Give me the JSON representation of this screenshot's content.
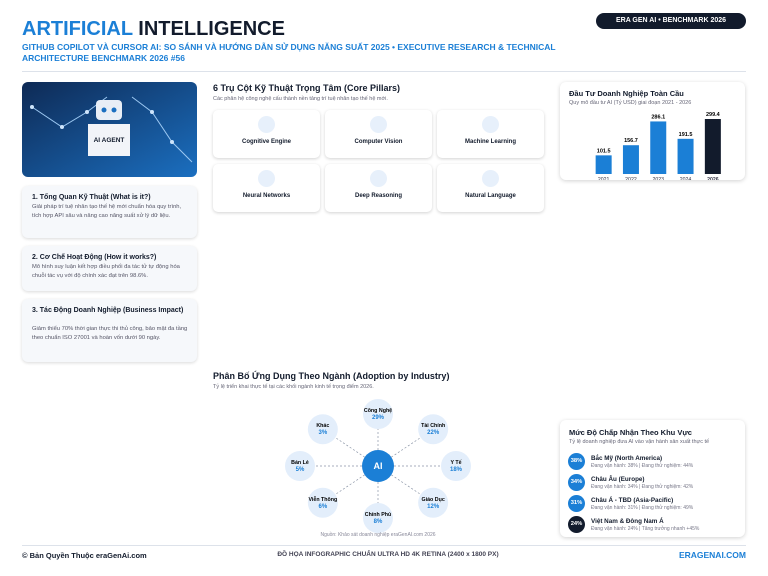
{
  "header": {
    "title_a": "ARTIFICIAL",
    "title_b": "INTELLIGENCE",
    "badge": "ERA GEN AI • BENCHMARK 2026",
    "subtitle": "GITHUB COPILOT VÀ CURSOR AI: SO SÁNH VÀ HƯỚNG DẪN SỬ DỤNG NĂNG SUẤT 2025 • EXECUTIVE RESEARCH & TECHNICAL ARCHITECTURE BENCHMARK 2026 #56"
  },
  "left": {
    "image_label": "AI AGENT",
    "cards": [
      {
        "title": "1. Tổng Quan Kỹ Thuật (What is it?)",
        "text": "Giải pháp trí tuệ nhân tạo thế hệ mới chuẩn hóa quy trình, tích hợp API sâu và nâng cao năng suất xử lý dữ liệu."
      },
      {
        "title": "2. Cơ Chế Hoạt Động (How it works?)",
        "text": "Mô hình suy luận kết hợp điều phối đa tác tử tự động hóa chuỗi tác vụ với độ chính xác đạt trên 98.6%."
      },
      {
        "title": "3. Tác Động Doanh Nghiệp (Business Impact)",
        "text": "Giảm thiểu 70% thời gian thực thi thủ công, bảo mật đa tầng theo chuẩn ISO 27001 và hoàn vốn dưới 90 ngày."
      }
    ]
  },
  "pillars": {
    "title": "6 Trụ Cột Kỹ Thuật Trọng Tâm (Core Pillars)",
    "subtitle": "Các phân hệ công nghệ cấu thành nền tảng trí tuệ nhân tạo thế hệ mới.",
    "items": [
      "Cognitive Engine",
      "Computer Vision",
      "Machine Learning",
      "Neural Networks",
      "Deep Reasoning",
      "Natural Language"
    ]
  },
  "chart_data": [
    {
      "type": "bar",
      "title": "Đầu Tư Doanh Nghiệp Toàn Cầu",
      "subtitle": "Quy mô đầu tư AI (Tỷ USD) giai đoạn 2021 - 2026",
      "categories": [
        "2021",
        "2022",
        "2023",
        "2024",
        "2026"
      ],
      "values": [
        101.5,
        156.7,
        286.1,
        191.5,
        299.4
      ],
      "colors": [
        "#1b7fd6",
        "#1b7fd6",
        "#1b7fd6",
        "#1b7fd6",
        "#121b2c"
      ]
    },
    {
      "type": "radial",
      "title": "Phân Bố Ứng Dụng Theo Ngành (Adoption by Industry)",
      "subtitle": "Tỷ lệ triển khai thực tế tại các khối ngành kinh tế trọng điểm 2026.",
      "center": "AI",
      "categories": [
        "Công Nghệ",
        "Tài Chính",
        "Y Tế",
        "Giáo Dục",
        "Chính Phủ",
        "Viễn Thông",
        "Bán Lẻ",
        "Khác"
      ],
      "values": [
        29,
        22,
        18,
        12,
        8,
        6,
        5,
        3
      ],
      "value_labels": [
        "29%",
        "22%",
        "18%",
        "12%",
        "8%",
        "6%",
        "5%",
        "3%"
      ],
      "note": "Nguồn: Khảo sát doanh nghiệp eraGenAI.com 2026"
    }
  ],
  "regions": {
    "title": "Mức Độ Chấp Nhận Theo Khu Vực",
    "subtitle": "Tỷ lệ doanh nghiệp đưa AI vào vận hành sản xuất thực tế",
    "items": [
      {
        "badge": "38%",
        "name": "Bắc Mỹ (North America)",
        "detail": "Đang vận hành: 38% | Đang thử nghiệm: 44%"
      },
      {
        "badge": "34%",
        "name": "Châu Âu (Europe)",
        "detail": "Đang vận hành: 34% | Đang thử nghiệm: 42%"
      },
      {
        "badge": "31%",
        "name": "Châu Á - TBD (Asia-Pacific)",
        "detail": "Đang vận hành: 31% | Đang thử nghiệm: 49%"
      },
      {
        "badge": "24%",
        "name": "Việt Nam & Đông Nam Á",
        "detail": "Đang vận hành: 24% | Tăng trưởng nhanh +45%"
      }
    ]
  },
  "footer": {
    "left": "© Bản Quyền Thuộc eraGenAi.com",
    "center": "ĐỒ HỌA INFOGRAPHIC CHUẨN ULTRA HD 4K RETINA (2400 x 1800 PX)",
    "right": "ERAGENAI.COM"
  }
}
